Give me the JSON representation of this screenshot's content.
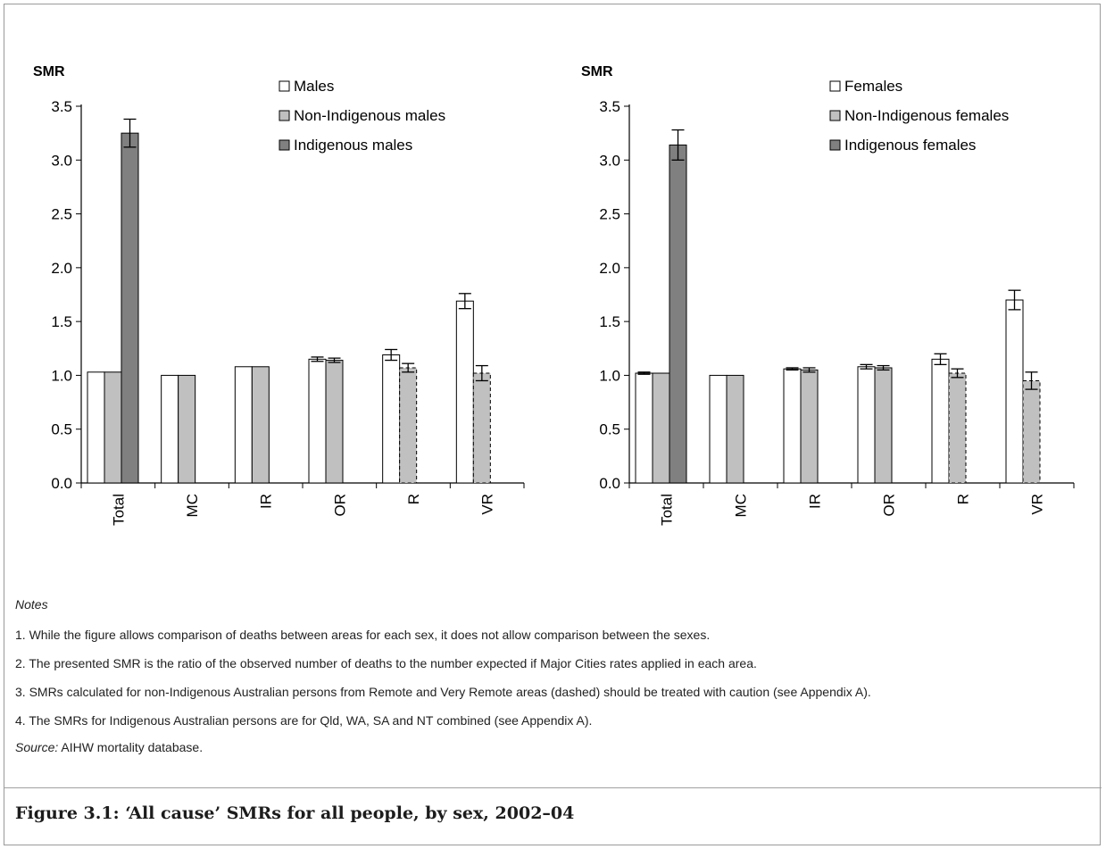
{
  "caption": "Figure 3.1: ‘All cause’ SMRs for all people, by sex, 2002–04",
  "notes": {
    "heading": "Notes",
    "items": [
      "1.  While the figure allows comparison of deaths between areas for each sex, it does not allow comparison between the sexes.",
      "2.  The presented SMR is the ratio of the observed number of deaths to the number expected if Major Cities rates applied in each area.",
      "3.  SMRs calculated for non-Indigenous Australian persons from Remote and Very Remote areas (dashed) should be treated with caution (see Appendix A).",
      "4.  The SMRs for Indigenous Australian persons are for Qld, WA, SA and NT combined (see Appendix A)."
    ],
    "source_label": "Source:",
    "source_text": " AIHW mortality database."
  },
  "colors": {
    "all": "#ffffff",
    "non_indigenous": "#c0c0c0",
    "indigenous": "#808080",
    "axis": "#000000"
  },
  "chart_data": [
    {
      "type": "bar",
      "title": "",
      "ylabel": "SMR",
      "xlabel": "",
      "ylim": [
        0,
        3.5
      ],
      "yticks": [
        "0.0",
        "0.5",
        "1.0",
        "1.5",
        "2.0",
        "2.5",
        "3.0",
        "3.5"
      ],
      "categories": [
        "Total",
        "MC",
        "IR",
        "OR",
        "R",
        "VR"
      ],
      "legend_position": "top-right",
      "grid": false,
      "dashed_note": "Non-Indigenous bars for R and VR are drawn dashed",
      "series": [
        {
          "name": "Males",
          "values": [
            1.03,
            1.0,
            1.08,
            1.15,
            1.19,
            1.69
          ],
          "error": [
            0.0,
            0.0,
            0.0,
            0.02,
            0.05,
            0.07
          ]
        },
        {
          "name": "Non-Indigenous males",
          "values": [
            1.03,
            1.0,
            1.08,
            1.14,
            1.07,
            1.02
          ],
          "error": [
            0.0,
            0.0,
            0.0,
            0.02,
            0.04,
            0.07
          ]
        },
        {
          "name": "Indigenous males",
          "values": [
            3.25,
            null,
            null,
            null,
            null,
            null
          ],
          "error": [
            0.13,
            null,
            null,
            null,
            null,
            null
          ]
        }
      ]
    },
    {
      "type": "bar",
      "title": "",
      "ylabel": "SMR",
      "xlabel": "",
      "ylim": [
        0,
        3.5
      ],
      "yticks": [
        "0.0",
        "0.5",
        "1.0",
        "1.5",
        "2.0",
        "2.5",
        "3.0",
        "3.5"
      ],
      "categories": [
        "Total",
        "MC",
        "IR",
        "OR",
        "R",
        "VR"
      ],
      "legend_position": "top-right",
      "grid": false,
      "dashed_note": "Non-Indigenous bars for R and VR are drawn dashed",
      "series": [
        {
          "name": "Females",
          "values": [
            1.02,
            1.0,
            1.06,
            1.08,
            1.15,
            1.7
          ],
          "error": [
            0.01,
            0.0,
            0.01,
            0.02,
            0.05,
            0.09
          ]
        },
        {
          "name": "Non-Indigenous females",
          "values": [
            1.02,
            1.0,
            1.05,
            1.07,
            1.02,
            0.95
          ],
          "error": [
            0.0,
            0.0,
            0.02,
            0.02,
            0.04,
            0.08
          ]
        },
        {
          "name": "Indigenous females",
          "values": [
            3.14,
            null,
            null,
            null,
            null,
            null
          ],
          "error": [
            0.14,
            null,
            null,
            null,
            null,
            null
          ]
        }
      ]
    }
  ]
}
